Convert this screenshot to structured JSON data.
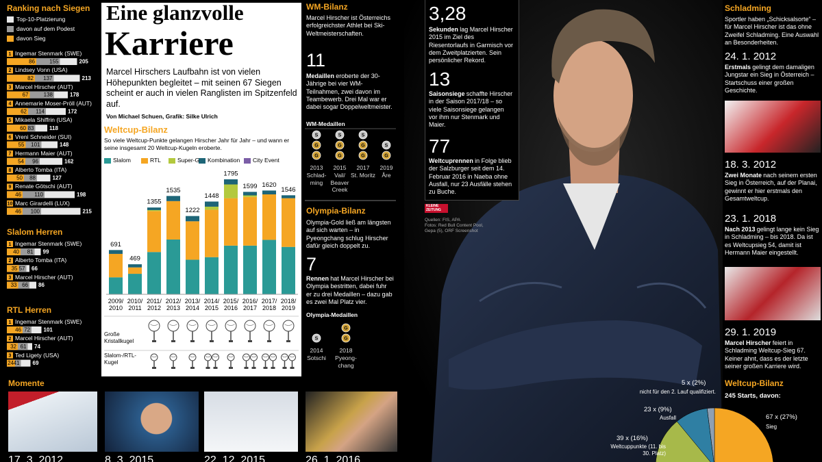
{
  "ranking": {
    "title": "Ranking nach Siegen",
    "legend": [
      "Top-10-Platzierung",
      "davon auf dem Podest",
      "davon Sieg"
    ],
    "entries": [
      {
        "rank": 1,
        "name": "Ingemar Stenmark (SWE)",
        "wins": 86,
        "podiums": 155,
        "top10": 205
      },
      {
        "rank": 2,
        "name": "Lindsey Vonn (USA)",
        "wins": 82,
        "podiums": 137,
        "top10": 213
      },
      {
        "rank": 3,
        "name": "Marcel Hirscher (AUT)",
        "wins": 67,
        "podiums": 138,
        "top10": 178
      },
      {
        "rank": 4,
        "name": "Annemarie Moser-Pröll (AUT)",
        "wins": 62,
        "podiums": 114,
        "top10": 172
      },
      {
        "rank": 5,
        "name": "Mikaela Shiffrin (USA)",
        "wins": 60,
        "podiums": 83,
        "top10": 118
      },
      {
        "rank": 6,
        "name": "Vreni Schneider (SUI)",
        "wins": 55,
        "podiums": 101,
        "top10": 148
      },
      {
        "rank": 7,
        "name": "Hermann Maier (AUT)",
        "wins": 54,
        "podiums": 96,
        "top10": 162
      },
      {
        "rank": 8,
        "name": "Alberto Tomba (ITA)",
        "wins": 50,
        "podiums": 88,
        "top10": 127
      },
      {
        "rank": 9,
        "name": "Renate Götschi (AUT)",
        "wins": 46,
        "podiums": 110,
        "top10": 198
      },
      {
        "rank": 10,
        "name": "Marc Girardelli (LUX)",
        "wins": 46,
        "podiums": 100,
        "top10": 215
      }
    ]
  },
  "slalom": {
    "title": "Slalom Herren",
    "entries": [
      {
        "rank": 1,
        "name": "Ingemar Stenmark (SWE)",
        "wins": 40,
        "podiums": 81,
        "top10": 99
      },
      {
        "rank": 2,
        "name": "Alberto Tomba (ITA)",
        "wins": 35,
        "podiums": 57,
        "top10": 66
      },
      {
        "rank": 3,
        "name": "Marcel Hirscher (AUT)",
        "wins": 33,
        "podiums": 66,
        "top10": 86
      }
    ]
  },
  "rtl": {
    "title": "RTL Herren",
    "entries": [
      {
        "rank": 1,
        "name": "Ingemar Stenmark (SWE)",
        "wins": 46,
        "podiums": 72,
        "top10": 101
      },
      {
        "rank": 2,
        "name": "Marcel Hirscher (AUT)",
        "wins": 32,
        "podiums": 61,
        "top10": 74
      },
      {
        "rank": 3,
        "name": "Ted Ligety (USA)",
        "wins": 24,
        "podiums": 41,
        "top10": 69
      }
    ]
  },
  "header": {
    "title_1": "Eine glanzvolle",
    "title_2": "Karriere",
    "intro": "Marcel Hirschers Laufbahn ist von vielen Höhepunkten begleitet – mit seinen 67 Siegen scheint er auch in vielen Ranglisten im Spitzenfeld auf.",
    "byline": "Von Michael Schuen, Grafik: Silke Ulrich"
  },
  "chart_data": [
    {
      "type": "bar",
      "title": "Weltcup-Bilanz",
      "subtitle": "So viele Weltcup-Punkte gelangen Hirscher Jahr für Jahr – und wann er seine insgesamt 20 Weltcup-Kugeln eroberte.",
      "categories": [
        "2009/2010",
        "2010/2011",
        "2011/2012",
        "2012/2013",
        "2013/2014",
        "2014/2015",
        "2015/2016",
        "2016/2017",
        "2017/2018",
        "2018/2019"
      ],
      "series": [
        {
          "name": "Slalom",
          "color": "#2a9a96",
          "values": [
            265,
            320,
            660,
            855,
            540,
            580,
            760,
            760,
            850,
            740
          ]
        },
        {
          "name": "RTL",
          "color": "#f5a623",
          "values": [
            366,
            100,
            640,
            600,
            600,
            740,
            740,
            760,
            710,
            760
          ]
        },
        {
          "name": "Super-G",
          "color": "#b3c93e",
          "values": [
            0,
            0,
            15,
            0,
            0,
            48,
            215,
            24,
            0,
            0
          ]
        },
        {
          "name": "Kombination",
          "color": "#1d6577",
          "values": [
            60,
            49,
            40,
            80,
            82,
            80,
            80,
            55,
            60,
            46
          ]
        },
        {
          "name": "City Event",
          "color": "#7b5ea7",
          "values": [
            0,
            0,
            0,
            0,
            0,
            0,
            0,
            0,
            0,
            0
          ]
        }
      ],
      "totals": [
        691,
        469,
        1355,
        1535,
        1222,
        1448,
        1795,
        1599,
        1620,
        1546
      ],
      "globes": [
        {
          "label": "Große Kristallkugel",
          "values": [
            0,
            0,
            1,
            1,
            1,
            1,
            1,
            1,
            1,
            1
          ]
        },
        {
          "label": "Slalom-/RTL-Kugel",
          "values": [
            0,
            0,
            1,
            1,
            1,
            2,
            1,
            2,
            2,
            2
          ]
        }
      ]
    },
    {
      "type": "pie",
      "title": "Weltcup-Bilanz",
      "subtitle": "245 Starts, davon:",
      "categories": [
        "Sieg",
        "nicht für den 2. Lauf qualifiziert.",
        "Ausfall",
        "Weltcuppunkte (11. bis 30. Platz)"
      ],
      "values": [
        27,
        2,
        9,
        16
      ],
      "value_labels": [
        "67 x (27%)",
        "5 x (2%)",
        "23 x (9%)",
        "39 x (16%)"
      ],
      "colors": [
        "#f5a623",
        "#8fa0b3",
        "#2f7fa3",
        "#a7b94a"
      ]
    }
  ],
  "wm": {
    "title": "WM-Bilanz",
    "intro": "Marcel Hirscher ist Österreichs erfolgreichster Athlet bei Ski-Weltmeisterschaften.",
    "big": 11,
    "bold": "Medaillen",
    "text": "eroberte der 30-Jährige bei vier WM-Teilnahmen, zwei davon im Teambewerb. Drei Mal war er dabei sogar Doppelweltmeister.",
    "medals_title": "WM-Medaillen",
    "events": [
      {
        "year": 2013,
        "place": "Schlad-ming",
        "medals": [
          "S",
          "G",
          "G"
        ]
      },
      {
        "year": 2015,
        "place": "Vail/ Beaver Creek",
        "medals": [
          "S",
          "G",
          "G"
        ]
      },
      {
        "year": 2017,
        "place": "St. Moritz",
        "medals": [
          "S",
          "G",
          "G"
        ]
      },
      {
        "year": 2019,
        "place": "Åre",
        "medals": [
          "S",
          "G"
        ]
      }
    ]
  },
  "olympia": {
    "title": "Olympia-Bilanz",
    "intro": "Olympia-Gold ließ am längsten auf sich warten – in Pyeongchang schlug Hirscher dafür gleich doppelt zu.",
    "big": 7,
    "bold": "Rennen",
    "text": "hat Marcel Hirscher bei Olympia bestritten, dabei fuhr er zu drei Medaillen – dazu gab es zwei Mal Platz vier.",
    "medals_title": "Olympia-Medaillen",
    "events": [
      {
        "year": 2014,
        "place": "Sotschi",
        "medals": [
          "S"
        ]
      },
      {
        "year": 2018,
        "place": "Pyeong-chang",
        "medals": [
          "G",
          "G"
        ]
      }
    ]
  },
  "facts": [
    {
      "big": "3,28",
      "bold": "Sekunden",
      "text": "lag Marcel Hirscher 2015 im Ziel des Riesentorlaufs in Garmisch vor dem Zweitplatzierten. Sein persönlicher Rekord."
    },
    {
      "big": 13,
      "bold": "Saisonsiege",
      "text": "schaffte Hirscher in der Saison 2017/18 – so viele Saisonsiege gelangen vor ihm nur Stenmark und Maier."
    },
    {
      "big": 77,
      "bold": "Weltcuprennen",
      "text": "in Folge blieb der Salzburger seit dem 14. Februar 2016 in Naeba ohne Ausfall, nur 23 Ausfälle stehen zu Buche."
    }
  ],
  "logo": [
    "KLEINE",
    "ZEITUNG"
  ],
  "credits": [
    "Quellen: FIS, APA",
    "Fotos: Red Bull Content Pool,",
    "Gepa (5), ORF Screenshot"
  ],
  "schladming": {
    "title": "Schladming",
    "intro": "Sportler haben „Schicksalsorte“ – für Marcel Hirscher ist das ohne Zweifel Schladming. Eine Auswahl an Besonderheiten.",
    "events": [
      {
        "date": "24. 1. 2012",
        "bold": "Erstmals",
        "text": "gelingt dem damaligen Jungstar ein Sieg in Österreich – Startschuss einer großen Geschichte."
      },
      {
        "date": "18. 3. 2012",
        "bold": "Zwei Monate",
        "text": "nach seinem ersten Sieg in Österreich, auf der Planai, gewinnt er hier erstmals den Gesamtweltcup."
      },
      {
        "date": "23. 1. 2018",
        "bold": "Nach 2013",
        "text": "gelingt lange kein Sieg in Schladming – bis 2018. Da ist es Weltcupsieg 54, damit ist Hermann Maier eingestellt."
      },
      {
        "date": "29. 1. 2019",
        "bold": "Marcel Hirscher",
        "text": "feiert in Schladming Weltcup-Sieg 67. Keiner ahnt, dass es der letzte seiner großen Karriere wird."
      }
    ]
  },
  "moments": {
    "title": "Momente",
    "dates": [
      "17. 3. 2012",
      "8. 3. 2015",
      "22. 12. 2015",
      "26. 1. 2016"
    ]
  }
}
